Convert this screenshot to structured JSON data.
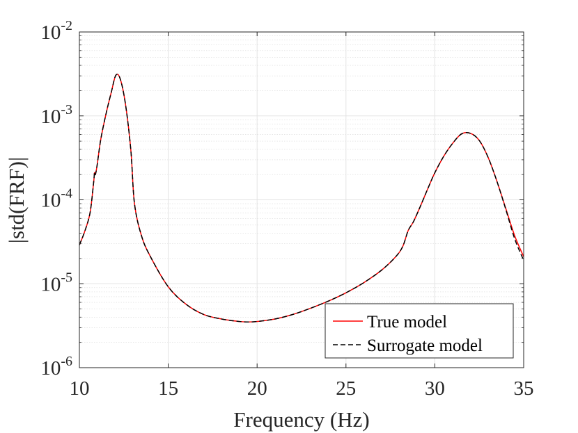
{
  "chart_data": {
    "type": "line",
    "xlabel": "Frequency (Hz)",
    "ylabel": "|std(FRF)|",
    "xlim": [
      10,
      35
    ],
    "ylim": [
      1e-06,
      0.01
    ],
    "yscale": "log",
    "grid": true,
    "minor_grid": true,
    "legend_position": "bottom-right",
    "x_ticks": [
      {
        "value": 10,
        "label": "10"
      },
      {
        "value": 15,
        "label": "15"
      },
      {
        "value": 20,
        "label": "20"
      },
      {
        "value": 25,
        "label": "25"
      },
      {
        "value": 30,
        "label": "30"
      },
      {
        "value": 35,
        "label": "35"
      }
    ],
    "y_ticks": [
      {
        "value": 1e-06,
        "base": "10",
        "exp": "-6"
      },
      {
        "value": 1e-05,
        "base": "10",
        "exp": "-5"
      },
      {
        "value": 0.0001,
        "base": "10",
        "exp": "-4"
      },
      {
        "value": 0.001,
        "base": "10",
        "exp": "-3"
      },
      {
        "value": 0.01,
        "base": "10",
        "exp": "-2"
      }
    ],
    "series": [
      {
        "name": "True model",
        "color": "#ff0000",
        "dash": "solid",
        "x": [
          10,
          10.3,
          10.6,
          10.8,
          10.85,
          10.9,
          11.0,
          11.2,
          11.5,
          11.8,
          12.05,
          12.3,
          12.6,
          12.9,
          13.1,
          13.5,
          14.0,
          15.0,
          16.0,
          17.0,
          18.0,
          19.0,
          19.5,
          20.0,
          21.0,
          22.0,
          23.0,
          24.0,
          25.0,
          26.0,
          27.0,
          27.8,
          28.2,
          28.5,
          28.8,
          29.2,
          29.6,
          30.0,
          30.5,
          31.0,
          31.5,
          32.0,
          32.5,
          33.0,
          33.5,
          34.0,
          34.5,
          35.0
        ],
        "y": [
          2.9e-05,
          4.2e-05,
          7e-05,
          0.00016,
          0.00021,
          0.0002,
          0.00026,
          0.00052,
          0.00106,
          0.00193,
          0.00305,
          0.00275,
          0.00135,
          0.00038,
          9e-05,
          3.7e-05,
          2.1e-05,
          9.2e-06,
          5.7e-06,
          4.3e-06,
          3.8e-06,
          3.55e-06,
          3.5e-06,
          3.55e-06,
          3.8e-06,
          4.3e-06,
          5.1e-06,
          6.2e-06,
          7.8e-06,
          1.03e-05,
          1.45e-05,
          2.1e-05,
          2.8e-05,
          4.3e-05,
          5.5e-05,
          8.5e-05,
          0.000135,
          0.00021,
          0.00033,
          0.00047,
          0.00061,
          0.00062,
          0.00051,
          0.00032,
          0.000165,
          7.8e-05,
          3.7e-05,
          2.1e-05
        ]
      },
      {
        "name": "Surrogate model",
        "color": "#000000",
        "dash": "dashed",
        "x": [
          10,
          10.3,
          10.6,
          10.8,
          10.85,
          10.9,
          11.0,
          11.2,
          11.5,
          11.8,
          12.05,
          12.3,
          12.6,
          12.9,
          13.1,
          13.5,
          14.0,
          15.0,
          16.0,
          17.0,
          18.0,
          19.0,
          19.5,
          20.0,
          21.0,
          22.0,
          23.0,
          24.0,
          25.0,
          26.0,
          27.0,
          27.8,
          28.2,
          28.5,
          28.8,
          29.2,
          29.6,
          30.0,
          30.5,
          31.0,
          31.5,
          32.0,
          32.5,
          33.0,
          33.5,
          34.0,
          34.5,
          35.0
        ],
        "y": [
          2.9e-05,
          4.2e-05,
          7e-05,
          0.00016,
          0.00021,
          0.0002,
          0.00026,
          0.00052,
          0.00106,
          0.00193,
          0.00305,
          0.00275,
          0.00135,
          0.00038,
          9e-05,
          3.7e-05,
          2.1e-05,
          9.2e-06,
          5.7e-06,
          4.3e-06,
          3.8e-06,
          3.55e-06,
          3.5e-06,
          3.55e-06,
          3.8e-06,
          4.3e-06,
          5.1e-06,
          6.2e-06,
          7.8e-06,
          1.03e-05,
          1.45e-05,
          2.1e-05,
          2.8e-05,
          4.3e-05,
          5.5e-05,
          8.5e-05,
          0.000135,
          0.00021,
          0.00033,
          0.00047,
          0.00061,
          0.00062,
          0.00051,
          0.00032,
          0.000165,
          7.6e-05,
          3.4e-05,
          1.9e-05
        ]
      }
    ]
  }
}
